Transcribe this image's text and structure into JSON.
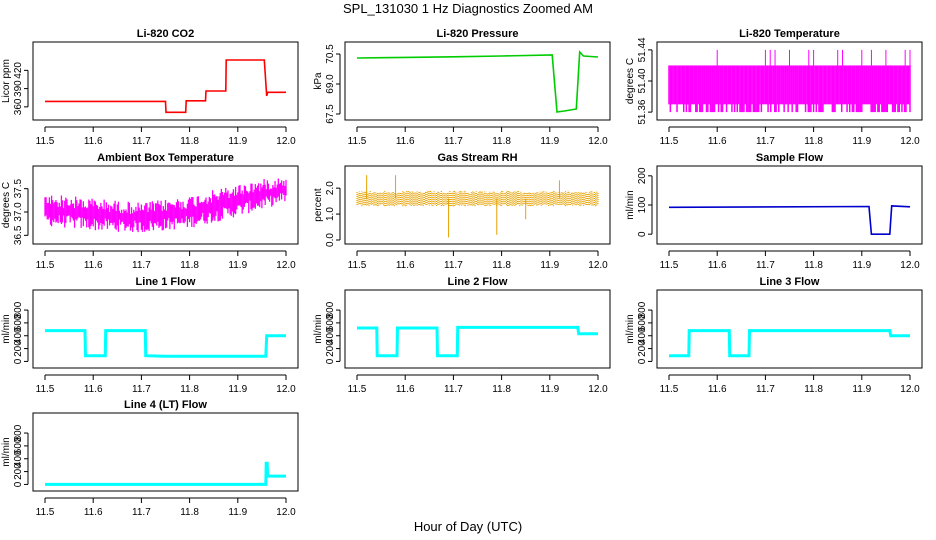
{
  "figure": {
    "title": "SPL_131030  1 Hz Diagnostics Zoomed AM",
    "xlabel": "Hour of Day (UTC)"
  },
  "chart_data": [
    {
      "type": "line",
      "title": "Li-820 CO2",
      "ylabel": "Licor ppm",
      "color": "#ff0000",
      "xlim": [
        11.5,
        12.0
      ],
      "ylim": [
        345,
        460
      ],
      "xticks": [
        "11.5",
        "11.6",
        "11.7",
        "11.8",
        "11.9",
        "12.0"
      ],
      "yticks": [
        {
          "v": 360,
          "label": "360"
        },
        {
          "v": 390,
          "label": "390"
        },
        {
          "v": 420,
          "label": "420"
        }
      ],
      "series": [
        {
          "x": [
            11.5,
            11.75,
            11.751,
            11.792,
            11.793,
            11.833,
            11.834,
            11.875,
            11.876,
            11.955,
            11.96,
            11.962,
            12.0
          ],
          "y": [
            369,
            369,
            351,
            351,
            370,
            370,
            386,
            386,
            437,
            437,
            378,
            384,
            384
          ]
        }
      ]
    },
    {
      "type": "line",
      "title": "Li-820 Pressure",
      "ylabel": "kPa",
      "color": "#00cc00",
      "xlim": [
        11.5,
        12.0
      ],
      "ylim": [
        67.4,
        70.9
      ],
      "xticks": [
        "11.5",
        "11.6",
        "11.7",
        "11.8",
        "11.9",
        "12.0"
      ],
      "yticks": [
        {
          "v": 67.5,
          "label": "67.5"
        },
        {
          "v": 69.0,
          "label": "69.0"
        },
        {
          "v": 70.5,
          "label": "70.5"
        }
      ],
      "series": [
        {
          "x": [
            11.5,
            11.6,
            11.7,
            11.8,
            11.905,
            11.915,
            11.93,
            11.955,
            11.962,
            11.97,
            12.0
          ],
          "y": [
            70.3,
            70.33,
            70.36,
            70.4,
            70.45,
            67.6,
            67.65,
            67.75,
            70.6,
            70.4,
            70.35
          ]
        }
      ]
    },
    {
      "type": "line",
      "title": "Li-820 Temperature",
      "ylabel": "degrees C",
      "color": "#ff00ff",
      "xlim": [
        11.5,
        12.0
      ],
      "ylim": [
        51.355,
        51.445
      ],
      "xticks": [
        "11.5",
        "11.6",
        "11.7",
        "11.8",
        "11.9",
        "12.0"
      ],
      "yticks": [
        {
          "v": 51.36,
          "label": "51.36"
        },
        {
          "v": 51.4,
          "label": "51.40"
        },
        {
          "v": 51.44,
          "label": "51.44"
        }
      ],
      "series": [
        {
          "name": "",
          "band": [
            51.36,
            51.42
          ],
          "x": [
            11.5,
            12.0
          ],
          "spikes_x": [
            11.6,
            11.7,
            11.71,
            11.72,
            11.75,
            11.79,
            11.8,
            11.85,
            11.86,
            11.9,
            11.92,
            11.95,
            11.99,
            12.0
          ],
          "spike_y": 51.44
        }
      ]
    },
    {
      "type": "line",
      "title": "Ambient Box Temperature",
      "ylabel": "degrees C",
      "color": "#ff00ff",
      "xlim": [
        11.5,
        12.0
      ],
      "ylim": [
        36.4,
        37.9
      ],
      "xticks": [
        "11.5",
        "11.6",
        "11.7",
        "11.8",
        "11.9",
        "12.0"
      ],
      "yticks": [
        {
          "v": 36.5,
          "label": "36.5"
        },
        {
          "v": 37.0,
          "label": "37.0"
        },
        {
          "v": 37.5,
          "label": "37.5"
        }
      ],
      "series": [
        {
          "x": [
            11.5,
            11.6,
            11.7,
            11.8,
            11.9,
            12.0
          ],
          "y_low": [
            36.7,
            36.6,
            36.55,
            36.65,
            36.9,
            37.2
          ],
          "y_high": [
            37.4,
            37.3,
            37.2,
            37.35,
            37.6,
            37.8
          ]
        }
      ]
    },
    {
      "type": "scatter",
      "title": "Gas Stream RH",
      "ylabel": "percent",
      "color": "#e6a100",
      "xlim": [
        11.5,
        12.0
      ],
      "ylim": [
        0,
        2.7
      ],
      "xticks": [
        "11.5",
        "11.6",
        "11.7",
        "11.8",
        "11.9",
        "12.0"
      ],
      "yticks": [
        {
          "v": 0.0,
          "label": "0.0"
        },
        {
          "v": 1.0,
          "label": "1.0"
        },
        {
          "v": 2.0,
          "label": "2.0"
        }
      ],
      "series": [
        {
          "x": [
            11.5,
            12.0
          ],
          "band": [
            1.3,
            1.9
          ],
          "spikes": [
            [
              11.52,
              2.5
            ],
            [
              11.58,
              2.5
            ],
            [
              11.69,
              0.1
            ],
            [
              11.79,
              0.2
            ],
            [
              11.85,
              0.8
            ],
            [
              11.92,
              2.3
            ]
          ]
        }
      ]
    },
    {
      "type": "line",
      "title": "Sample Flow",
      "ylabel": "ml/min",
      "color": "#0000cc",
      "xlim": [
        11.5,
        12.0
      ],
      "ylim": [
        -20,
        220
      ],
      "xticks": [
        "11.5",
        "11.6",
        "11.7",
        "11.8",
        "11.9",
        "12.0"
      ],
      "yticks": [
        {
          "v": 0,
          "label": "0"
        },
        {
          "v": 100,
          "label": "100"
        },
        {
          "v": 200,
          "label": "200"
        }
      ],
      "series": [
        {
          "x": [
            11.5,
            11.915,
            11.92,
            11.958,
            11.962,
            12.0
          ],
          "y": [
            92,
            95,
            0,
            0,
            97,
            94
          ]
        }
      ]
    },
    {
      "type": "line",
      "title": "Line 1 Flow",
      "ylabel": "ml/min",
      "color": "#00ffff",
      "xlim": [
        11.5,
        12.0
      ],
      "ylim": [
        -40,
        1050
      ],
      "xticks": [
        "11.5",
        "11.6",
        "11.7",
        "11.8",
        "11.9",
        "12.0"
      ],
      "yticks": [
        {
          "v": 0,
          "label": "0"
        },
        {
          "v": 200,
          "label": "200"
        },
        {
          "v": 400,
          "label": "400"
        },
        {
          "v": 600,
          "label": "600"
        },
        {
          "v": 800,
          "label": "800"
        }
      ],
      "series": [
        {
          "x": [
            11.5,
            11.583,
            11.584,
            11.625,
            11.626,
            11.708,
            11.709,
            11.75,
            11.958,
            11.96,
            12.0
          ],
          "y": [
            480,
            480,
            90,
            90,
            480,
            480,
            90,
            80,
            80,
            400,
            400
          ]
        }
      ]
    },
    {
      "type": "line",
      "title": "Line 2 Flow",
      "ylabel": "ml/min",
      "color": "#00ffff",
      "xlim": [
        11.5,
        12.0
      ],
      "ylim": [
        -40,
        1050
      ],
      "xticks": [
        "11.5",
        "11.6",
        "11.7",
        "11.8",
        "11.9",
        "12.0"
      ],
      "yticks": [
        {
          "v": 0,
          "label": "0"
        },
        {
          "v": 200,
          "label": "200"
        },
        {
          "v": 400,
          "label": "400"
        },
        {
          "v": 600,
          "label": "600"
        },
        {
          "v": 800,
          "label": "800"
        }
      ],
      "series": [
        {
          "x": [
            11.5,
            11.541,
            11.542,
            11.583,
            11.584,
            11.666,
            11.667,
            11.708,
            11.709,
            11.958,
            11.96,
            12.0
          ],
          "y": [
            520,
            520,
            90,
            90,
            520,
            520,
            90,
            90,
            530,
            530,
            430,
            430
          ]
        }
      ]
    },
    {
      "type": "line",
      "title": "Line 3 Flow",
      "ylabel": "ml/min",
      "color": "#00ffff",
      "xlim": [
        11.5,
        12.0
      ],
      "ylim": [
        -40,
        1050
      ],
      "xticks": [
        "11.5",
        "11.6",
        "11.7",
        "11.8",
        "11.9",
        "12.0"
      ],
      "yticks": [
        {
          "v": 0,
          "label": "0"
        },
        {
          "v": 200,
          "label": "200"
        },
        {
          "v": 400,
          "label": "400"
        },
        {
          "v": 600,
          "label": "600"
        },
        {
          "v": 800,
          "label": "800"
        }
      ],
      "series": [
        {
          "x": [
            11.5,
            11.541,
            11.542,
            11.625,
            11.626,
            11.666,
            11.667,
            11.958,
            11.96,
            12.0
          ],
          "y": [
            90,
            90,
            480,
            480,
            90,
            90,
            480,
            480,
            400,
            400
          ]
        }
      ]
    },
    {
      "type": "line",
      "title": "Line 4 (LT) Flow",
      "ylabel": "ml/min",
      "color": "#00ffff",
      "xlim": [
        11.5,
        12.0
      ],
      "ylim": [
        -40,
        1050
      ],
      "xticks": [
        "11.5",
        "11.6",
        "11.7",
        "11.8",
        "11.9",
        "12.0"
      ],
      "yticks": [
        {
          "v": 0,
          "label": "0"
        },
        {
          "v": 200,
          "label": "200"
        },
        {
          "v": 400,
          "label": "400"
        },
        {
          "v": 600,
          "label": "600"
        },
        {
          "v": 800,
          "label": "800"
        }
      ],
      "series": [
        {
          "x": [
            11.5,
            11.958,
            11.959,
            11.961,
            11.962,
            12.0
          ],
          "y": [
            0,
            0,
            330,
            330,
            130,
            130
          ]
        }
      ]
    }
  ]
}
